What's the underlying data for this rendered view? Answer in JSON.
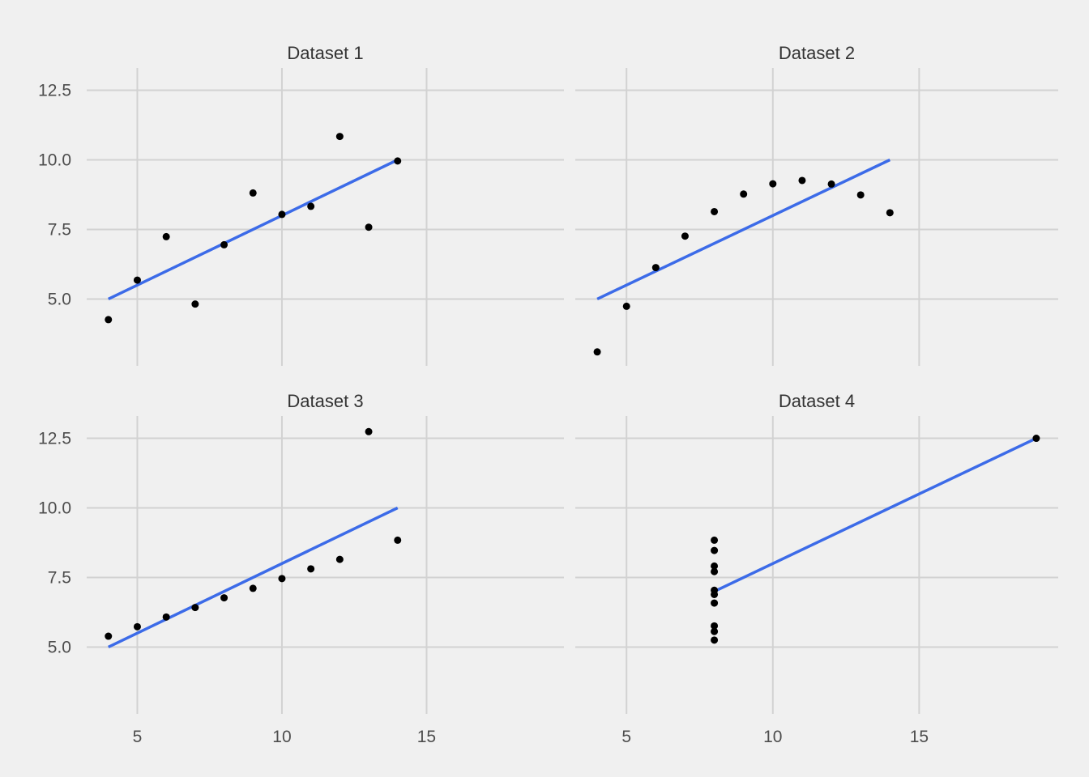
{
  "colors": {
    "background": "#f0f0f0",
    "gridline": "#d2d2d2",
    "point": "#000000",
    "fit_line": "#3c6be8",
    "text": "#4d4d4d"
  },
  "chart_data": {
    "type": "scatter",
    "layout": "facet 2x2, shared axes",
    "grid": true,
    "xlim": [
      3.25,
      19.75
    ],
    "ylim": [
      2.6,
      13.3
    ],
    "x_ticks": [
      5,
      10,
      15
    ],
    "x_tick_labels": [
      "5",
      "10",
      "15"
    ],
    "y_ticks": [
      5.0,
      7.5,
      10.0,
      12.5
    ],
    "y_tick_labels": [
      "5.0",
      "7.5",
      "10.0",
      "12.5"
    ],
    "panels": [
      {
        "title": "Dataset 1",
        "x": [
          10,
          8,
          13,
          9,
          11,
          14,
          6,
          4,
          12,
          7,
          5
        ],
        "y": [
          8.04,
          6.95,
          7.58,
          8.81,
          8.33,
          9.96,
          7.24,
          4.26,
          10.84,
          4.82,
          5.68
        ],
        "fit": {
          "intercept": 3.0,
          "slope": 0.5,
          "x_range": [
            4,
            14
          ]
        }
      },
      {
        "title": "Dataset 2",
        "x": [
          10,
          8,
          13,
          9,
          11,
          14,
          6,
          4,
          12,
          7,
          5
        ],
        "y": [
          9.14,
          8.14,
          8.74,
          8.77,
          9.26,
          8.1,
          6.13,
          3.1,
          9.13,
          7.26,
          4.74
        ],
        "fit": {
          "intercept": 3.0,
          "slope": 0.5,
          "x_range": [
            4,
            14
          ]
        }
      },
      {
        "title": "Dataset 3",
        "x": [
          10,
          8,
          13,
          9,
          11,
          14,
          6,
          4,
          12,
          7,
          5
        ],
        "y": [
          7.46,
          6.77,
          12.74,
          7.11,
          7.81,
          8.84,
          6.08,
          5.39,
          8.15,
          6.42,
          5.73
        ],
        "fit": {
          "intercept": 3.0,
          "slope": 0.5,
          "x_range": [
            4,
            14
          ]
        }
      },
      {
        "title": "Dataset 4",
        "x": [
          8,
          8,
          8,
          8,
          8,
          8,
          8,
          19,
          8,
          8,
          8
        ],
        "y": [
          6.58,
          5.76,
          7.71,
          8.84,
          8.47,
          7.04,
          5.25,
          12.5,
          5.56,
          7.91,
          6.89
        ],
        "fit": {
          "intercept": 3.0,
          "slope": 0.5,
          "x_range": [
            8,
            19
          ]
        }
      }
    ]
  }
}
